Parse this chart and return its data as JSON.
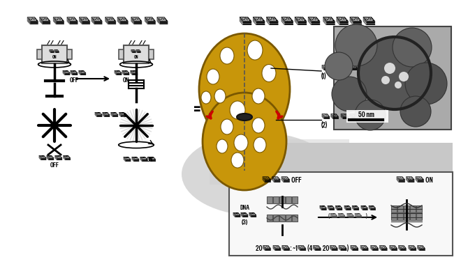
{
  "title_left": "엔진 및 클러치 구조 및 작동",
  "title_right": "극미세 클러치 나노로봇",
  "bg_color": "#ffffff",
  "left_panel": {
    "clutch_off_label": "클러치\nOFF",
    "clutch_on_label": "클러치\nON",
    "propeller_label": "프로펠러",
    "power_off_label": "동력전달\nOFF",
    "power_on_label": "동력전달 ON",
    "engine_label_line1": "엔진",
    "engine_label_line2": "ON"
  },
  "right_panel": {
    "label1": "자성 엔진\n(1)",
    "label2": "구형 로터\n(2)",
    "scale_label": "50 nm"
  },
  "bottom_panel": {
    "clutch_off": "클러치 OFF",
    "clutch_on": "클러치 ON",
    "dna_label": "DNA\n클러치\n(3)",
    "signal_label": "유전자 생체 신호",
    "signal_sub": "(질병 인자...)",
    "footer_normal": "20개 서열: ~1조 (4의 20제곱) 개 의 인자 감지 가능"
  },
  "gold_color": "#c8960a",
  "gold_edge": "#7a5800",
  "gold_hole": "#2a1800",
  "red_color": "#cc0000"
}
